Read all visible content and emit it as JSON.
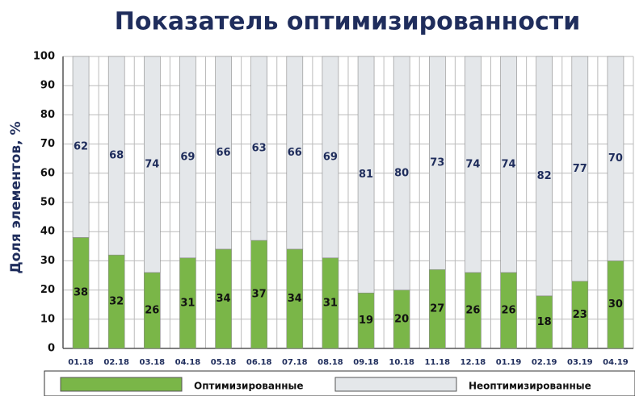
{
  "chart_data": {
    "type": "stacked_bar",
    "title": "Показатель оптимизированности",
    "y_label": "Доля элементов, %",
    "categories": [
      "01.18",
      "02.18",
      "03.18",
      "04.18",
      "05.18",
      "06.18",
      "07.18",
      "08.18",
      "09.18",
      "10.18",
      "11.18",
      "12.18",
      "01.19",
      "02.19",
      "03.19",
      "04.19"
    ],
    "series": [
      {
        "name": "Оптимизированные",
        "color": "#7ab648",
        "label_color": "#111111",
        "values": [
          38,
          32,
          26,
          31,
          34,
          37,
          34,
          31,
          19,
          20,
          27,
          26,
          26,
          18,
          23,
          30
        ]
      },
      {
        "name": "Неоптимизированные",
        "color": "#e4e7ea",
        "label_color": "#1f2d5c",
        "values": [
          62,
          68,
          74,
          69,
          66,
          63,
          66,
          69,
          81,
          80,
          73,
          74,
          74,
          82,
          77,
          70
        ]
      }
    ],
    "ylim": [
      0,
      100
    ],
    "yticks": [
      0,
      10,
      20,
      30,
      40,
      50,
      60,
      70,
      80,
      90,
      100
    ],
    "grid": true
  }
}
